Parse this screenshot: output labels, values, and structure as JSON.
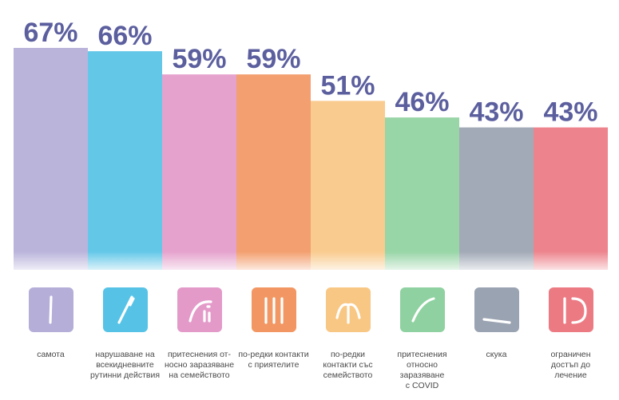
{
  "chart_data": {
    "type": "bar",
    "categories": [
      "самота",
      "нарушаване на\nвсекидневните\nрутинни действия",
      "притеснения от-\nносно заразяване\nна семейството",
      "по-редки контакти\nс приятелите",
      "по-редки\nконтакти със\nсемейството",
      "притеснения относно\nзаразяване\nс COVID",
      "скука",
      "ограничен\nдостъп до\nлечение"
    ],
    "values": [
      67,
      66,
      59,
      59,
      51,
      46,
      43,
      43
    ],
    "value_labels": [
      "67%",
      "66%",
      "59%",
      "59%",
      "51%",
      "46%",
      "43%",
      "43%"
    ],
    "colors": [
      "#b4aed8",
      "#56c3e6",
      "#e39ac9",
      "#f29763",
      "#f9c784",
      "#8fd1a0",
      "#9aa3b1",
      "#ec7a83"
    ],
    "icons": [
      "single-stroke-icon",
      "broken-stroke-icon",
      "arc-dots-icon",
      "three-strokes-icon",
      "fountain-icon",
      "rising-curve-icon",
      "slanted-line-icon",
      "partial-circle-icon"
    ],
    "ylim": [
      0,
      70
    ],
    "legend": "none",
    "grid": false
  }
}
